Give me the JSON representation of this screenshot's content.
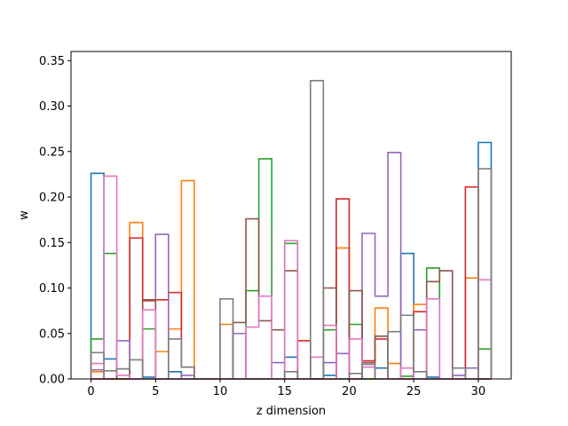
{
  "chart_data": {
    "type": "step",
    "title": "",
    "xlabel": "z dimension",
    "ylabel": "w",
    "xlim": [
      -1.55,
      32.55
    ],
    "ylim": [
      0,
      0.36
    ],
    "xticks": [
      0,
      5,
      10,
      15,
      20,
      25,
      30
    ],
    "yticks": [
      0.0,
      0.05,
      0.1,
      0.15,
      0.2,
      0.25,
      0.3,
      0.35
    ],
    "grid": false,
    "legend": "none",
    "colors": [
      "#1f77b4",
      "#ff7f0e",
      "#2ca02c",
      "#d62728",
      "#9467bd",
      "#8c564b",
      "#e377c2",
      "#7f7f7f"
    ],
    "x": [
      0,
      1,
      2,
      3,
      4,
      5,
      6,
      7,
      8,
      9,
      10,
      11,
      12,
      13,
      14,
      15,
      16,
      17,
      18,
      19,
      20,
      21,
      22,
      23,
      24,
      25,
      26,
      27,
      28,
      29,
      30
    ],
    "series": [
      {
        "values": [
          0.226,
          0.022,
          0.0,
          0.0,
          0.002,
          0.0,
          0.008,
          0.0,
          0.0,
          0.0,
          0.0,
          0.0,
          0.0,
          0.0,
          0.0,
          0.024,
          0.0,
          0.0,
          0.004,
          0.0,
          0.0,
          0.0,
          0.012,
          0.0,
          0.138,
          0.0,
          0.002,
          0.0,
          0.0,
          0.0,
          0.26
        ]
      },
      {
        "values": [
          0.008,
          0.0,
          0.0,
          0.172,
          0.0,
          0.03,
          0.055,
          0.218,
          0.0,
          0.0,
          0.06,
          0.0,
          0.0,
          0.0,
          0.0,
          0.0,
          0.0,
          0.0,
          0.0,
          0.144,
          0.0,
          0.0,
          0.078,
          0.017,
          0.0,
          0.082,
          0.0,
          0.0,
          0.0,
          0.111,
          0.0
        ]
      },
      {
        "values": [
          0.044,
          0.138,
          0.0,
          0.0,
          0.055,
          0.0,
          0.0,
          0.0,
          0.0,
          0.0,
          0.0,
          0.0,
          0.097,
          0.242,
          0.0,
          0.149,
          0.0,
          0.0,
          0.054,
          0.0,
          0.06,
          0.0,
          0.0,
          0.0,
          0.003,
          0.0,
          0.122,
          0.0,
          0.0,
          0.0,
          0.033
        ]
      },
      {
        "values": [
          0.0,
          0.0,
          0.0,
          0.155,
          0.086,
          0.087,
          0.095,
          0.013,
          0.0,
          0.0,
          0.0,
          0.0,
          0.0,
          0.0,
          0.0,
          0.0,
          0.042,
          0.0,
          0.0,
          0.198,
          0.0,
          0.02,
          0.044,
          0.0,
          0.0,
          0.074,
          0.0,
          0.0,
          0.0,
          0.211,
          0.0
        ]
      },
      {
        "values": [
          0.01,
          0.0,
          0.042,
          0.0,
          0.0,
          0.159,
          0.0,
          0.004,
          0.0,
          0.0,
          0.0,
          0.05,
          0.0,
          0.0,
          0.018,
          0.0,
          0.0,
          0.0,
          0.018,
          0.028,
          0.0,
          0.16,
          0.091,
          0.249,
          0.0,
          0.054,
          0.0,
          0.0,
          0.004,
          0.012,
          0.0
        ]
      },
      {
        "values": [
          0.0,
          0.0,
          0.011,
          0.0,
          0.087,
          0.0,
          0.0,
          0.0,
          0.0,
          0.0,
          0.0,
          0.062,
          0.176,
          0.064,
          0.054,
          0.119,
          0.0,
          0.0,
          0.1,
          0.0,
          0.097,
          0.018,
          0.047,
          0.0,
          0.0,
          0.0,
          0.107,
          0.119,
          0.0,
          0.0,
          0.0
        ]
      },
      {
        "values": [
          0.017,
          0.223,
          0.004,
          0.0,
          0.076,
          0.0,
          0.0,
          0.0,
          0.0,
          0.0,
          0.0,
          0.0,
          0.057,
          0.091,
          0.0,
          0.152,
          0.0,
          0.024,
          0.059,
          0.0,
          0.044,
          0.013,
          0.0,
          0.0,
          0.012,
          0.0,
          0.088,
          0.0,
          0.0,
          0.0,
          0.109
        ]
      },
      {
        "values": [
          0.029,
          0.009,
          0.011,
          0.021,
          0.0,
          0.0,
          0.044,
          0.013,
          0.0,
          0.0,
          0.088,
          0.0,
          0.0,
          0.0,
          0.0,
          0.008,
          0.0,
          0.328,
          0.0,
          0.0,
          0.006,
          0.016,
          0.0,
          0.052,
          0.07,
          0.008,
          0.0,
          0.0,
          0.012,
          0.0,
          0.231
        ]
      }
    ]
  }
}
